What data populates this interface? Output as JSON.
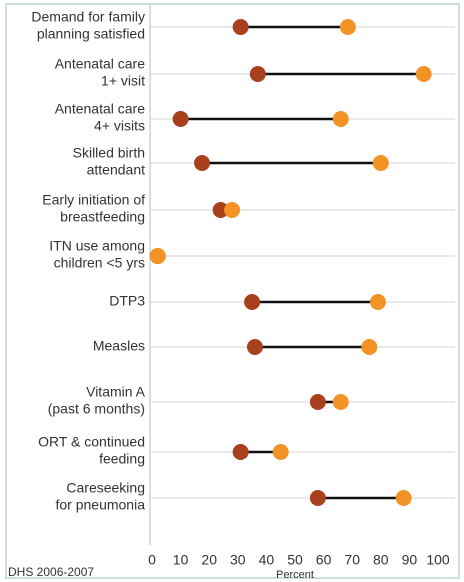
{
  "chart_data": {
    "type": "dumbbell",
    "categories": [
      [
        "Demand for family",
        "planning satisfied"
      ],
      [
        "Antenatal care",
        "1+ visit"
      ],
      [
        "Antenatal care",
        "4+ visits"
      ],
      [
        "Skilled birth",
        "attendant"
      ],
      [
        "Early initiation of",
        "breastfeeding"
      ],
      [
        "ITN use among",
        "children <5 yrs"
      ],
      [
        "DTP3"
      ],
      [
        "Measles"
      ],
      [
        "Vitamin A",
        "(past 6 months)"
      ],
      [
        "ORT & continued",
        "feeding"
      ],
      [
        "Careseeking",
        "for pneumonia"
      ]
    ],
    "series": [
      {
        "color": "#a8401e",
        "values": [
          31,
          37,
          10,
          17.5,
          24,
          2,
          35,
          36,
          58,
          31,
          58
        ]
      },
      {
        "color": "#f39325",
        "values": [
          68.5,
          95,
          66,
          80,
          28,
          2,
          79,
          76,
          66,
          45,
          88
        ]
      }
    ],
    "xlim": [
      0,
      100
    ],
    "xticks": [
      0,
      10,
      20,
      30,
      40,
      50,
      60,
      70,
      80,
      90,
      100
    ],
    "xlabel": "Percent",
    "source": "DHS 2006-2007",
    "grid": true
  }
}
